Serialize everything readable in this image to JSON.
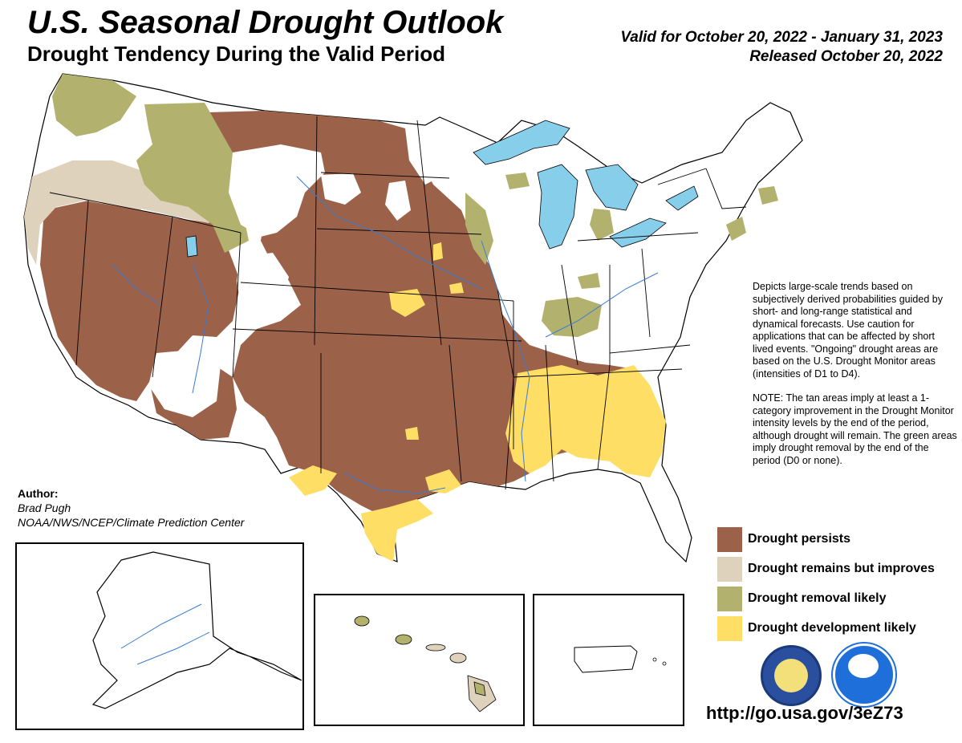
{
  "header": {
    "title": "U.S. Seasonal Drought Outlook",
    "subtitle": "Drought Tendency During the Valid Period",
    "valid": "Valid for October 20, 2022 - January 31, 2023",
    "released": "Released October 20, 2022"
  },
  "description": {
    "para1": "Depicts large-scale trends based on subjectively derived probabilities guided by short- and long-range statistical and dynamical forecasts. Use caution for applications that can be affected by short lived events. \"Ongoing\" drought areas are based on the U.S. Drought Monitor areas (intensities of D1 to D4).",
    "para2": "NOTE: The tan areas imply at least a 1-category improvement in the Drought Monitor intensity levels by the end of the period, although drought will remain. The green areas imply drought removal by the end of the period (D0 or none)."
  },
  "author": {
    "label": "Author:",
    "name": "Brad Pugh",
    "org": "NOAA/NWS/NCEP/Climate Prediction Center"
  },
  "legend": [
    {
      "label": "Drought persists",
      "color": "#9b6249"
    },
    {
      "label": "Drought remains but improves",
      "color": "#ded2bd"
    },
    {
      "label": "Drought removal likely",
      "color": "#b2b16e"
    },
    {
      "label": "Drought development likely",
      "color": "#fede65"
    }
  ],
  "colors": {
    "water": "#87ceeb",
    "boundary": "#000000",
    "river": "#3a7bd5"
  },
  "logos": [
    "commerce-seal-icon",
    "noaa-logo-icon"
  ],
  "url": "http://go.usa.gov/3eZ73"
}
